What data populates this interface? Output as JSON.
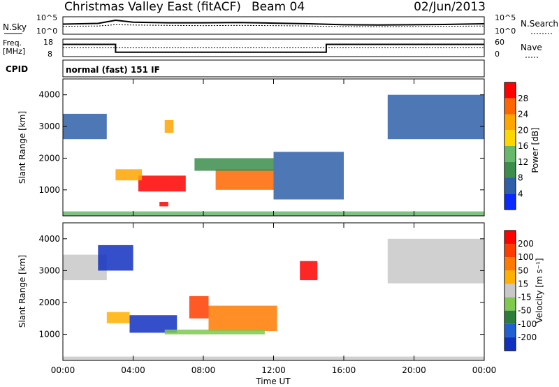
{
  "header": {
    "title": "Christmas Valley East (fitACF)",
    "beam": "Beam 04",
    "date": "02/Jun/2013"
  },
  "top_panels": {
    "nsky_label": "N.Sky",
    "nsearch_label": "N.Search",
    "noise_ticks_left": [
      "10^5",
      "10^0"
    ],
    "noise_ticks_right": [
      "10^5",
      "10^0"
    ],
    "freq_label_line1": "Freq.",
    "freq_label_line2": "[MHz]",
    "freq_ticks": [
      "18",
      "8"
    ],
    "nave_label": "Nave",
    "nave_ticks": [
      "60",
      "0"
    ],
    "cpid_label": "CPID",
    "cpid_value": "normal (fast) 151 IF"
  },
  "colors": {
    "power_scale": [
      "#0a28ff",
      "#2f5fa8",
      "#3c8c4c",
      "#68b86c",
      "#ffd700",
      "#ffa500",
      "#ff6600",
      "#ff0000"
    ],
    "velocity_scale": [
      "#1030c0",
      "#2060d0",
      "#2d7d3a",
      "#7fc94f",
      "#c8c8c8",
      "#ffb000",
      "#ff7a00",
      "#ff3c00",
      "#ff0000"
    ]
  },
  "chart_data": [
    {
      "type": "line",
      "name": "noise",
      "x": [
        0,
        2,
        3,
        4,
        6,
        8,
        10,
        12,
        14,
        16,
        18,
        20,
        22,
        24
      ],
      "series": [
        {
          "name": "N.Sky",
          "values": [
            3.2,
            3.4,
            4.4,
            3.8,
            3.6,
            3.6,
            3.7,
            3.5,
            3.3,
            3.0,
            2.9,
            3.0,
            3.1,
            3.3
          ]
        },
        {
          "name": "N.Search",
          "values": [
            2.5,
            2.6,
            3.0,
            2.9,
            2.8,
            2.7,
            2.8,
            2.7,
            2.6,
            2.4,
            2.3,
            2.4,
            2.5,
            2.6
          ]
        }
      ]
    },
    {
      "type": "line",
      "name": "frequency",
      "x": [
        0,
        3,
        3,
        15,
        15,
        24
      ],
      "series": [
        {
          "name": "Freq. [MHz]",
          "values": [
            15,
            15,
            10.5,
            10.5,
            15,
            15
          ]
        },
        {
          "name": "Nave",
          "values": [
            30,
            30,
            30,
            30,
            30,
            30
          ]
        }
      ]
    },
    {
      "type": "heatmap",
      "name": "power",
      "ylabel": "Slant Range [km]",
      "xlabel": "Time UT",
      "xlim": [
        0,
        24
      ],
      "ylim": [
        180,
        4500
      ],
      "xticks": [
        "00:00",
        "04:00",
        "08:00",
        "12:00",
        "16:00",
        "20:00",
        "00:00"
      ],
      "yticks": [
        "1000",
        "2000",
        "3000",
        "4000"
      ],
      "colorbar_label": "Power [dB]",
      "colorbar_ticks": [
        "28",
        "24",
        "20",
        "16",
        "12",
        "8",
        "4"
      ],
      "regions": [
        {
          "t0": 4.3,
          "t1": 7.0,
          "r0": 950,
          "r1": 1450,
          "level": 7
        },
        {
          "t0": 8.7,
          "t1": 12.0,
          "r0": 1000,
          "r1": 1650,
          "level": 6
        },
        {
          "t0": 3.0,
          "t1": 4.5,
          "r0": 1300,
          "r1": 1650,
          "level": 5
        },
        {
          "t0": 5.5,
          "t1": 6.0,
          "r0": 480,
          "r1": 620,
          "level": 7
        },
        {
          "t0": 0.0,
          "t1": 24.0,
          "r0": 180,
          "r1": 320,
          "level": 3
        },
        {
          "t0": 0.0,
          "t1": 2.5,
          "r0": 2600,
          "r1": 3400,
          "level": 1
        },
        {
          "t0": 18.5,
          "t1": 24.0,
          "r0": 2600,
          "r1": 4000,
          "level": 1
        },
        {
          "t0": 7.5,
          "t1": 12.0,
          "r0": 1600,
          "r1": 2000,
          "level": 2
        },
        {
          "t0": 12.0,
          "t1": 16.0,
          "r0": 700,
          "r1": 2200,
          "level": 1
        },
        {
          "t0": 5.8,
          "t1": 6.3,
          "r0": 2800,
          "r1": 3200,
          "level": 5
        }
      ]
    },
    {
      "type": "heatmap",
      "name": "velocity",
      "ylabel": "Slant Range [km]",
      "xlabel": "Time UT",
      "xlim": [
        0,
        24
      ],
      "ylim": [
        180,
        4500
      ],
      "xticks": [
        "00:00",
        "04:00",
        "08:00",
        "12:00",
        "16:00",
        "20:00",
        "00:00"
      ],
      "yticks": [
        "1000",
        "2000",
        "3000",
        "4000"
      ],
      "colorbar_label": "Velocity [m s⁻¹]",
      "colorbar_ticks": [
        "200",
        "100",
        "50",
        "15",
        "-15",
        "-50",
        "-100",
        "-200"
      ],
      "regions": [
        {
          "t0": 3.8,
          "t1": 6.5,
          "r0": 1050,
          "r1": 1600,
          "level": 0
        },
        {
          "t0": 8.3,
          "t1": 12.2,
          "r0": 1100,
          "r1": 1900,
          "level": 6
        },
        {
          "t0": 2.5,
          "t1": 3.8,
          "r0": 1350,
          "r1": 1700,
          "level": 5
        },
        {
          "t0": 7.2,
          "t1": 8.3,
          "r0": 1500,
          "r1": 2200,
          "level": 7
        },
        {
          "t0": 13.5,
          "t1": 14.5,
          "r0": 2700,
          "r1": 3300,
          "level": 8
        },
        {
          "t0": 5.8,
          "t1": 11.5,
          "r0": 1000,
          "r1": 1150,
          "level": 3
        },
        {
          "t0": 18.5,
          "t1": 24.0,
          "r0": 2600,
          "r1": 4000,
          "level": 4
        },
        {
          "t0": 0.0,
          "t1": 2.5,
          "r0": 2700,
          "r1": 3500,
          "level": 4
        },
        {
          "t0": 0.0,
          "t1": 24.0,
          "r0": 180,
          "r1": 300,
          "level": 4
        },
        {
          "t0": 2.0,
          "t1": 4.0,
          "r0": 3000,
          "r1": 3800,
          "level": 0
        }
      ]
    }
  ]
}
